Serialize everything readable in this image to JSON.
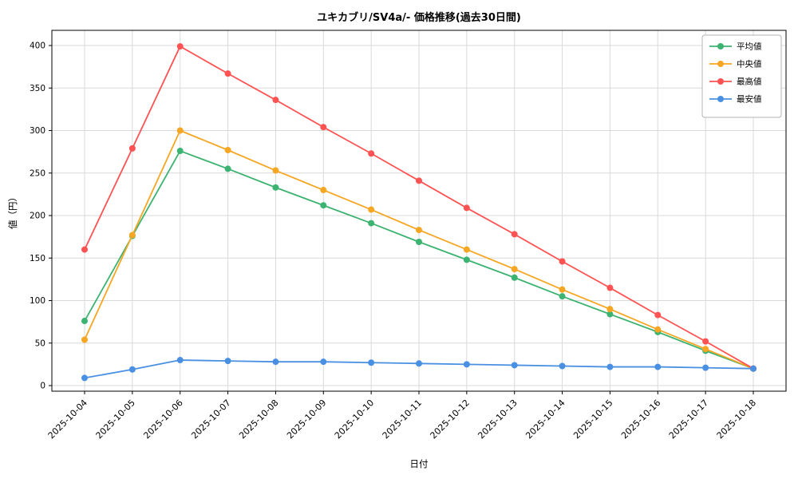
{
  "figure": {
    "background": "#ffffff",
    "plot_background": "#ffffff",
    "grid_color": "#d9d9d9",
    "axis_color": "#000000",
    "legend_border_color": "#b3b3b3"
  },
  "chart_data": {
    "type": "line",
    "title": "ユキカブリ/SV4a/- 価格推移(過去30日間)",
    "xlabel": "日付",
    "ylabel": "値（円）",
    "ylim": [
      0,
      400
    ],
    "ytick_step": 50,
    "grid": true,
    "legend_position": "upper right",
    "categories": [
      "2025-10-04",
      "2025-10-05",
      "2025-10-06",
      "2025-10-07",
      "2025-10-08",
      "2025-10-09",
      "2025-10-10",
      "2025-10-11",
      "2025-10-12",
      "2025-10-13",
      "2025-10-14",
      "2025-10-15",
      "2025-10-16",
      "2025-10-17",
      "2025-10-18"
    ],
    "series": [
      {
        "name": "平均値",
        "color": "#3cb371",
        "values": [
          76,
          176,
          276,
          255,
          233,
          212,
          191,
          169,
          148,
          127,
          105,
          84,
          63,
          41,
          20
        ]
      },
      {
        "name": "中央値",
        "color": "#f5a623",
        "values": [
          54,
          177,
          300,
          277,
          253,
          230,
          207,
          183,
          160,
          137,
          113,
          90,
          66,
          43,
          20
        ]
      },
      {
        "name": "最高値",
        "color": "#ff5252",
        "values": [
          160,
          279,
          399,
          367,
          336,
          304,
          273,
          241,
          209,
          178,
          146,
          115,
          83,
          52,
          20
        ]
      },
      {
        "name": "最安値",
        "color": "#4a90e2",
        "values": [
          9,
          19,
          30,
          29,
          28,
          28,
          27,
          26,
          25,
          24,
          23,
          22,
          22,
          21,
          20
        ]
      }
    ]
  }
}
